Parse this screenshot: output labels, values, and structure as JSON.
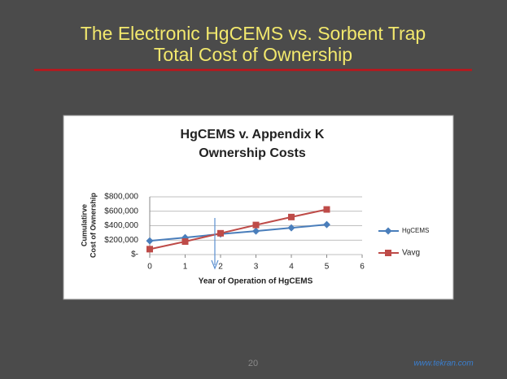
{
  "slide": {
    "title": [
      "The Electronic HgCEMS vs. Sorbent Trap",
      "Total Cost of Ownership"
    ],
    "page_number": "20",
    "url": "www.tekran.com"
  },
  "chart_data": {
    "type": "line",
    "title": [
      "HgCEMS v. Appendix K",
      "Ownership Costs"
    ],
    "x_label": "Year of Operation of HgCEMS",
    "y_label": [
      "Cumulatirve",
      "Cost of Ownership"
    ],
    "x": [
      0,
      1,
      2,
      3,
      4,
      5
    ],
    "series": [
      {
        "name": "HgCEMS",
        "color": "#4a7ebb",
        "marker": "diamond",
        "values": [
          190000,
          235000,
          285000,
          325000,
          370000,
          415000
        ]
      },
      {
        "name": "Vavg",
        "color": "#be4b48",
        "marker": "square",
        "values": [
          75000,
          180000,
          295000,
          410000,
          520000,
          625000
        ]
      }
    ],
    "xlim": [
      0,
      6
    ],
    "xticks": [
      0,
      1,
      2,
      3,
      4,
      5,
      6
    ],
    "ylim": [
      0,
      800000
    ],
    "yticks": [
      {
        "value": 0,
        "label": "$-"
      },
      {
        "value": 200000,
        "label": "$200,000"
      },
      {
        "value": 400000,
        "label": "$400,000"
      },
      {
        "value": 600000,
        "label": "$600,000"
      },
      {
        "value": 800000,
        "label": "$800,000"
      }
    ],
    "grid": true,
    "legend": "right"
  }
}
